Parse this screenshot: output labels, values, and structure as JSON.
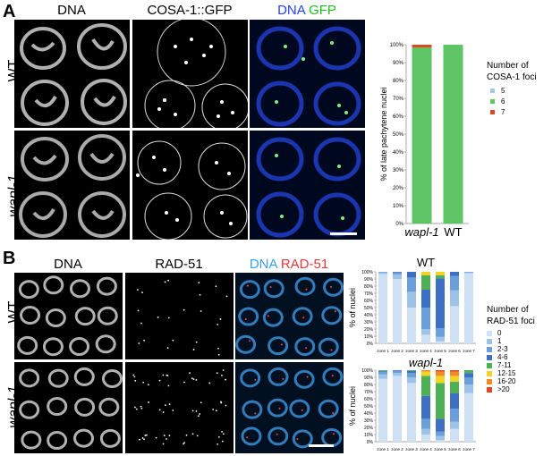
{
  "panel_a": {
    "letter": "A",
    "col_headers": [
      "DNA",
      "COSA-1::GFP"
    ],
    "merge_header": {
      "part1": "DNA",
      "part2": "GFP"
    },
    "row_labels": [
      "WT",
      "wapl-1"
    ],
    "chart_data": {
      "type": "bar",
      "stacked": true,
      "categories": [
        "wapl-1",
        "WT"
      ],
      "ylabel": "% of late pachytene nuclei",
      "ylim": [
        0,
        100
      ],
      "yticks": [
        "0%",
        "10%",
        "20%",
        "30%",
        "40%",
        "50%",
        "60%",
        "70%",
        "80%",
        "90%",
        "100%"
      ],
      "legend_title": [
        "Number of",
        "COSA-1 foci"
      ],
      "series": [
        {
          "name": "5",
          "color": "#a9c7e6",
          "values": [
            0,
            0
          ]
        },
        {
          "name": "6",
          "color": "#5fc466",
          "values": [
            98.5,
            100
          ]
        },
        {
          "name": "7",
          "color": "#e2461e",
          "values": [
            1.5,
            0
          ]
        }
      ]
    }
  },
  "panel_b": {
    "letter": "B",
    "col_headers": [
      "DNA",
      "RAD-51"
    ],
    "merge_header": {
      "part1": "DNA",
      "part2": "RAD-51"
    },
    "row_labels": [
      "WT",
      "wapl-1"
    ],
    "legend_title": [
      "Number of",
      "RAD-51 foci"
    ],
    "chart_data": [
      {
        "type": "bar",
        "stacked": true,
        "title": "WT",
        "ylabel": "% of nuclei",
        "ylim": [
          0,
          100
        ],
        "yticks": [
          "0%",
          "10%",
          "20%",
          "30%",
          "40%",
          "50%",
          "60%",
          "70%",
          "80%",
          "90%",
          "100%"
        ],
        "categories": [
          "zone 1",
          "zone 2",
          "zone 3",
          "zone 4",
          "zone 5",
          "zone 6",
          "zone 7"
        ],
        "series": [
          {
            "name": "0",
            "color": "#cfe0f3",
            "values": [
              97,
              90,
              50,
              12,
              3,
              52,
              98
            ]
          },
          {
            "name": "1",
            "color": "#9cc2e8",
            "values": [
              2,
              6,
              22,
              8,
              6,
              22,
              1
            ]
          },
          {
            "name": "2-3",
            "color": "#6a9fdc",
            "values": [
              1,
              3,
              20,
              30,
              12,
              20,
              1
            ]
          },
          {
            "name": "4-6",
            "color": "#3d6fc4",
            "values": [
              0,
              1,
              8,
              25,
              70,
              6,
              0
            ]
          },
          {
            "name": "7-11",
            "color": "#4db153",
            "values": [
              0,
              0,
              0,
              20,
              4,
              0,
              0
            ]
          },
          {
            "name": "12-15",
            "color": "#f2d321",
            "values": [
              0,
              0,
              0,
              5,
              5,
              0,
              0
            ]
          },
          {
            "name": "16-20",
            "color": "#f08a24",
            "values": [
              0,
              0,
              0,
              0,
              0,
              0,
              0
            ]
          },
          {
            "name": ">20",
            "color": "#e2461e",
            "values": [
              0,
              0,
              0,
              0,
              0,
              0,
              0
            ]
          }
        ]
      },
      {
        "type": "bar",
        "stacked": true,
        "title": "wapl-1",
        "ylabel": "% of nuclei",
        "ylim": [
          0,
          100
        ],
        "yticks": [
          "0%",
          "10%",
          "20%",
          "30%",
          "40%",
          "50%",
          "60%",
          "70%",
          "80%",
          "90%",
          "100%"
        ],
        "categories": [
          "zone 1",
          "zone 2",
          "zone 3",
          "zone 4",
          "zone 5",
          "zone 6",
          "zone 7"
        ],
        "series": [
          {
            "name": "0",
            "color": "#cfe0f3",
            "values": [
              88,
              92,
              82,
              10,
              2,
              18,
              68
            ]
          },
          {
            "name": "1",
            "color": "#9cc2e8",
            "values": [
              6,
              4,
              8,
              8,
              6,
              10,
              12
            ]
          },
          {
            "name": "2-3",
            "color": "#6a9fdc",
            "values": [
              4,
              3,
              6,
              14,
              6,
              18,
              10
            ]
          },
          {
            "name": "4-6",
            "color": "#3d6fc4",
            "values": [
              1,
              1,
              3,
              32,
              18,
              22,
              6
            ]
          },
          {
            "name": "7-11",
            "color": "#4db153",
            "values": [
              1,
              0,
              1,
              28,
              50,
              16,
              4
            ]
          },
          {
            "name": "12-15",
            "color": "#f2d321",
            "values": [
              0,
              0,
              0,
              6,
              10,
              8,
              0
            ]
          },
          {
            "name": "16-20",
            "color": "#f08a24",
            "values": [
              0,
              0,
              0,
              2,
              6,
              6,
              0
            ]
          },
          {
            "name": ">20",
            "color": "#e2461e",
            "values": [
              0,
              0,
              0,
              0,
              2,
              2,
              0
            ]
          }
        ]
      }
    ]
  }
}
